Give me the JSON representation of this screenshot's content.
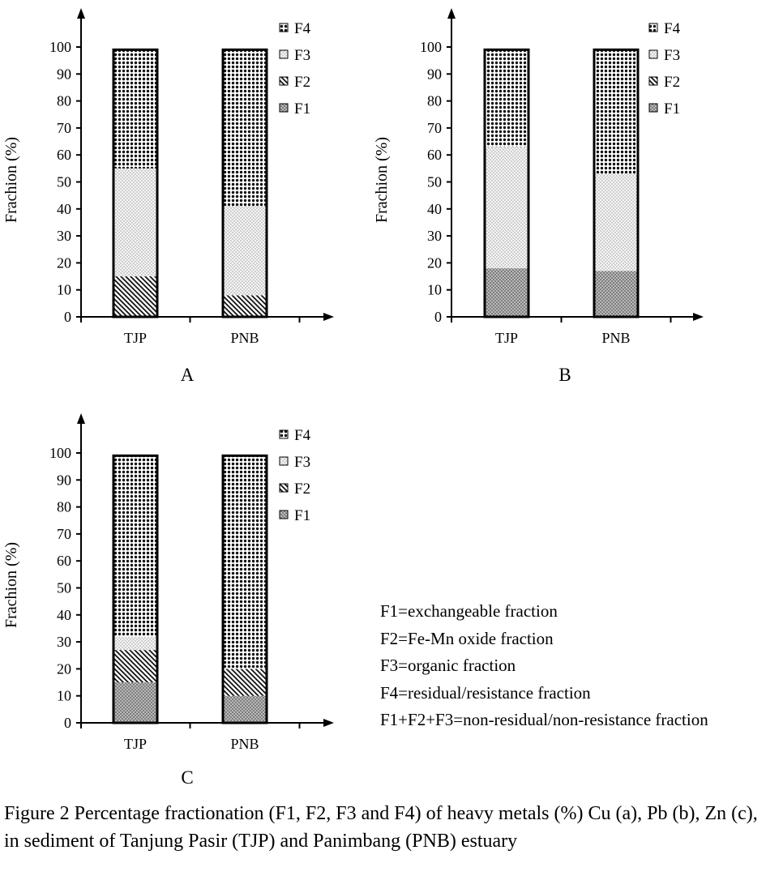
{
  "chart_data": [
    {
      "type": "bar",
      "stacked": true,
      "panel": "A",
      "categories": [
        "TJP",
        "PNB"
      ],
      "ylabel": "Frachion (%)",
      "ylim": [
        0,
        100
      ],
      "yticks": [
        0,
        10,
        20,
        30,
        40,
        50,
        60,
        70,
        80,
        90,
        100
      ],
      "legend": [
        "F4",
        "F3",
        "F2",
        "F1"
      ],
      "legend_position": "top-right",
      "series": [
        {
          "name": "F1",
          "values": [
            0,
            0
          ]
        },
        {
          "name": "F2",
          "values": [
            15,
            8
          ]
        },
        {
          "name": "F3",
          "values": [
            40,
            33
          ]
        },
        {
          "name": "F4",
          "values": [
            44,
            58
          ]
        }
      ]
    },
    {
      "type": "bar",
      "stacked": true,
      "panel": "B",
      "categories": [
        "TJP",
        "PNB"
      ],
      "ylabel": "Frachion (%)",
      "ylim": [
        0,
        100
      ],
      "yticks": [
        0,
        10,
        20,
        30,
        40,
        50,
        60,
        70,
        80,
        90,
        100
      ],
      "legend": [
        "F4",
        "F3",
        "F2",
        "F1"
      ],
      "legend_position": "top-right",
      "series": [
        {
          "name": "F1",
          "values": [
            18,
            17
          ]
        },
        {
          "name": "F2",
          "values": [
            0,
            0
          ]
        },
        {
          "name": "F3",
          "values": [
            45,
            36
          ]
        },
        {
          "name": "F4",
          "values": [
            36,
            46
          ]
        }
      ]
    },
    {
      "type": "bar",
      "stacked": true,
      "panel": "C",
      "categories": [
        "TJP",
        "PNB"
      ],
      "ylabel": "Frachion (%)",
      "ylim": [
        0,
        100
      ],
      "yticks": [
        0,
        10,
        20,
        30,
        40,
        50,
        60,
        70,
        80,
        90,
        100
      ],
      "legend": [
        "F4",
        "F3",
        "F2",
        "F1"
      ],
      "legend_position": "top-right",
      "series": [
        {
          "name": "F1",
          "values": [
            15,
            10
          ]
        },
        {
          "name": "F2",
          "values": [
            12,
            10
          ]
        },
        {
          "name": "F3",
          "values": [
            5,
            0
          ]
        },
        {
          "name": "F4",
          "values": [
            67,
            79
          ]
        }
      ]
    }
  ],
  "notes": [
    "F1=exchangeable fraction",
    "F2=Fe-Mn oxide fraction",
    "F3=organic fraction",
    "F4=residual/resistance fraction",
    "F1+F2+F3=non-residual/non-resistance fraction"
  ],
  "caption": "Figure 2 Percentage fractionation (F1, F2, F3 and F4) of heavy metals (%) Cu (a), Pb (b), Zn (c), in sediment of Tanjung Pasir (TJP) and Panimbang (PNB) estuary"
}
